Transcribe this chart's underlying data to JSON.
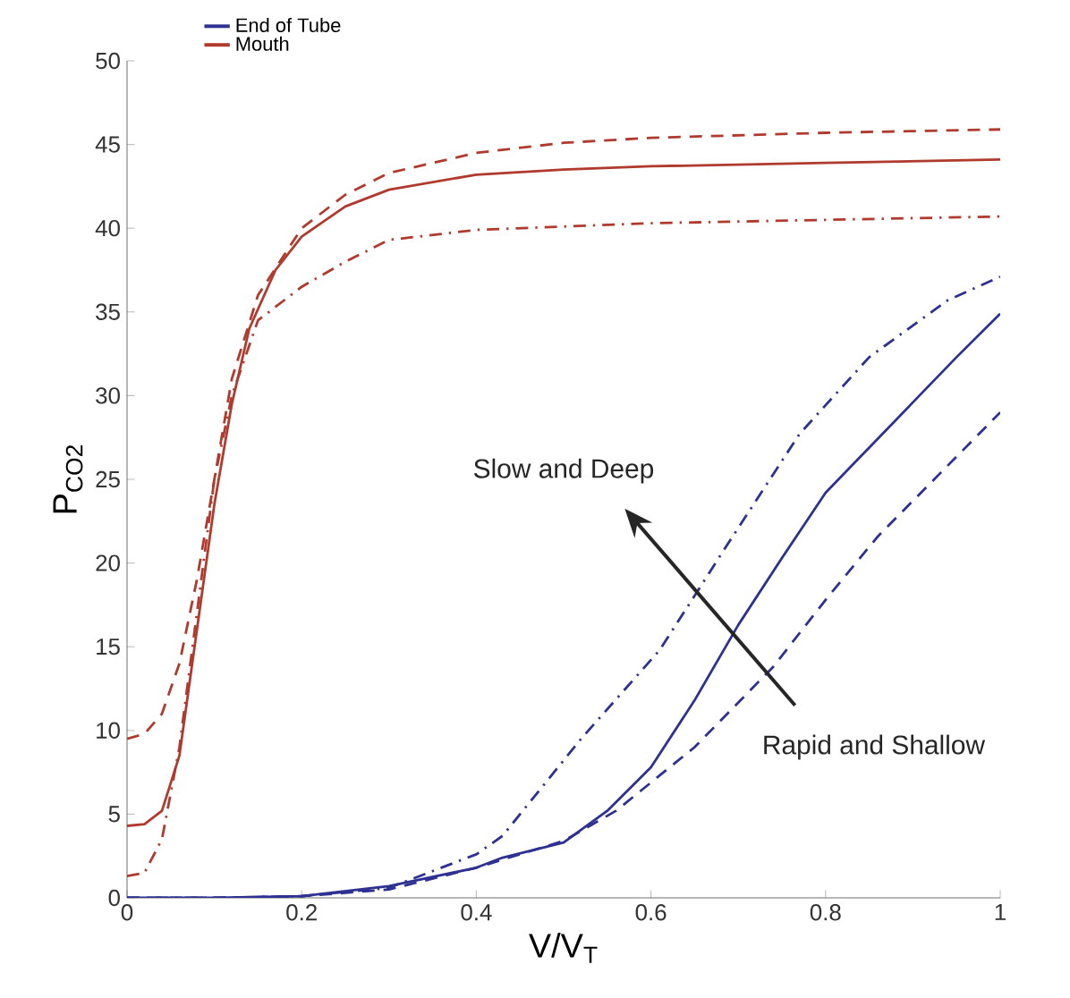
{
  "chart_data": {
    "type": "line",
    "xlabel": "V/V$_{T}$",
    "ylabel": "P$_{CO2}$",
    "xlim": [
      0,
      1
    ],
    "ylim": [
      0,
      50
    ],
    "xticks": [
      0,
      0.2,
      0.4,
      0.6,
      0.8,
      1
    ],
    "yticks": [
      0,
      5,
      10,
      15,
      20,
      25,
      30,
      35,
      40,
      45,
      50
    ],
    "legend": "top left",
    "marker": "none",
    "series": [
      {
        "name": "End of Tube",
        "color": "#2e3192",
        "line_style": "solid",
        "x": [
          0,
          0.1,
          0.2,
          0.3,
          0.4,
          0.43,
          0.5,
          0.55,
          0.6,
          0.65,
          0.7,
          0.75,
          0.8,
          0.85,
          0.9,
          0.95,
          1.0
        ],
        "values": [
          0,
          0,
          0.1,
          0.7,
          1.8,
          2.4,
          3.3,
          5.2,
          7.8,
          11.8,
          16.3,
          20.3,
          24.2,
          26.9,
          29.6,
          32.3,
          34.9
        ]
      },
      {
        "name": "Mouth",
        "color": "#b03a2e",
        "line_style": "solid",
        "x": [
          0,
          0.02,
          0.04,
          0.06,
          0.08,
          0.1,
          0.12,
          0.14,
          0.17,
          0.2,
          0.25,
          0.3,
          0.4,
          0.5,
          0.6,
          0.8,
          1.0
        ],
        "values": [
          4.3,
          4.4,
          5.2,
          8.5,
          16,
          23.5,
          29.5,
          34,
          37.5,
          39.5,
          41.3,
          42.3,
          43.2,
          43.5,
          43.7,
          43.9,
          44.1
        ]
      },
      {
        "color": "#2e3192",
        "line_style": "dashed",
        "x": [
          0,
          0.1,
          0.2,
          0.3,
          0.4,
          0.5,
          0.56,
          0.65,
          0.74,
          0.8,
          0.86,
          0.93,
          1.0
        ],
        "values": [
          0,
          0,
          0.1,
          0.5,
          1.8,
          3.4,
          5.2,
          9,
          13.8,
          17.8,
          21.6,
          25.3,
          29.0
        ]
      },
      {
        "color": "#2e3192",
        "line_style": "dashdot",
        "x": [
          0,
          0.1,
          0.2,
          0.3,
          0.4,
          0.43,
          0.52,
          0.61,
          0.69,
          0.77,
          0.85,
          0.94,
          1.0
        ],
        "values": [
          0,
          0,
          0.1,
          0.6,
          2.6,
          3.7,
          9.5,
          14.8,
          21.3,
          27.7,
          32.3,
          35.7,
          37.1
        ]
      },
      {
        "color": "#b03a2e",
        "line_style": "dashed",
        "x": [
          0,
          0.02,
          0.04,
          0.06,
          0.08,
          0.1,
          0.12,
          0.15,
          0.2,
          0.25,
          0.3,
          0.4,
          0.5,
          0.6,
          0.8,
          1.0
        ],
        "values": [
          9.5,
          9.8,
          11,
          14,
          19,
          25,
          31,
          36,
          40,
          42,
          43.3,
          44.5,
          45.1,
          45.4,
          45.7,
          45.9
        ]
      },
      {
        "color": "#b03a2e",
        "line_style": "dashdot",
        "x": [
          0,
          0.02,
          0.04,
          0.06,
          0.08,
          0.1,
          0.12,
          0.15,
          0.2,
          0.25,
          0.3,
          0.4,
          0.5,
          0.6,
          0.8,
          1.0
        ],
        "values": [
          1.3,
          1.5,
          3.5,
          9,
          17,
          25,
          30,
          34.5,
          36.5,
          38,
          39.3,
          39.9,
          40.1,
          40.3,
          40.5,
          40.7
        ]
      }
    ],
    "annotations": [
      "Slow and Deep",
      "Rapid and Shallow"
    ]
  }
}
